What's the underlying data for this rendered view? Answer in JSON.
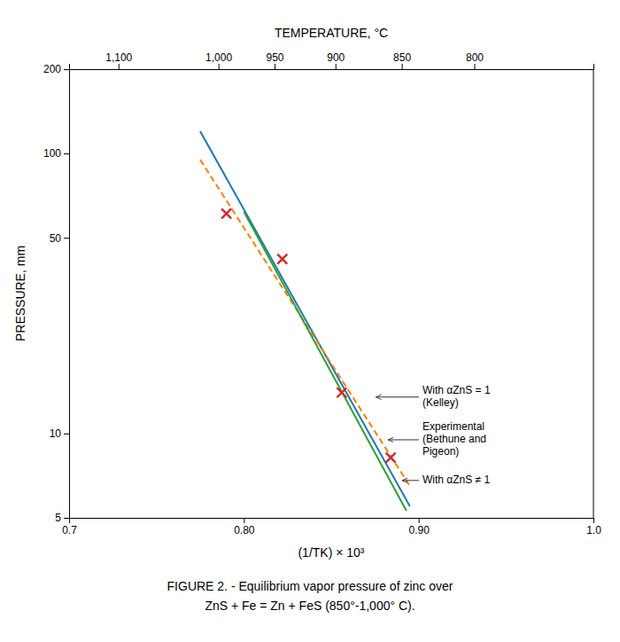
{
  "chart_data": {
    "type": "line",
    "title": "FIGURE 2. - Equilibrium vapor pressure of zinc over",
    "subtitle": "ZnS + Fe = Zn + FeS (850°-1,000° C).",
    "xlabel": "(1/TK) × 10³",
    "ylabel": "PRESSURE, mm",
    "x2label": "TEMPERATURE, °C",
    "log": "y",
    "grid": false,
    "xlim": [
      0.7,
      1.0
    ],
    "xticks": [
      0.7,
      {
        "value": 0.8,
        "label": "0.80"
      },
      {
        "value": 0.9,
        "label": "0.90"
      },
      {
        "value": 1.0,
        "label": "1.0"
      }
    ],
    "x2lim": [
      0.7,
      1.0
    ],
    "x2ticks": [
      {
        "value": 0.7282526,
        "label": "1,100"
      },
      {
        "value": 0.7854534,
        "label": "1,000"
      },
      {
        "value": 0.8175612,
        "label": "950"
      },
      {
        "value": 0.8524059,
        "label": "900"
      },
      {
        "value": 0.890353,
        "label": "850"
      },
      {
        "value": 0.9318362,
        "label": "800"
      }
    ],
    "ylim": [
      5,
      200
    ],
    "yticks": [
      5,
      10,
      50,
      100,
      200
    ],
    "series": [
      {
        "type": "line",
        "line_style": "solid",
        "x": [
          0.775,
          0.895
        ],
        "values": [
          120,
          5.5
        ]
      },
      {
        "type": "line",
        "line_style": "dashed",
        "x": [
          0.775,
          0.895
        ],
        "values": [
          95,
          6.5
        ]
      },
      {
        "type": "line",
        "line_style": "solid",
        "x": [
          0.8,
          0.893
        ],
        "values": [
          62,
          5.3
        ]
      },
      {
        "type": "scatter",
        "marker": "x",
        "x": [
          0.79,
          0.822,
          0.856,
          0.884
        ],
        "values": [
          61,
          42,
          14,
          8.2
        ]
      }
    ],
    "annotations": [
      {
        "text": "With αZnS = 1\n(Kelley)",
        "x": 0.874,
        "y": 13.5
      },
      {
        "text": "Experimental\n(Bethune and\nPigeon)",
        "x": 0.881,
        "y": 9.5
      },
      {
        "text": "With αZnS ≠ 1",
        "x": 0.889,
        "y": 6.8
      }
    ]
  }
}
